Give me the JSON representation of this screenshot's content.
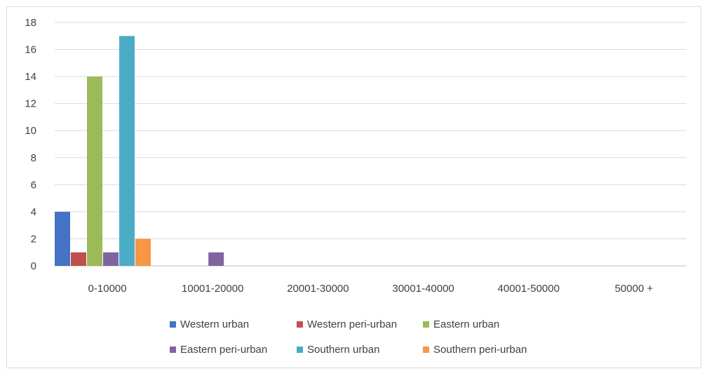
{
  "chart_data": {
    "type": "bar",
    "title": "",
    "xlabel": "",
    "ylabel": "",
    "ylim": [
      0,
      18
    ],
    "yticks": [
      0,
      2,
      4,
      6,
      8,
      10,
      12,
      14,
      16,
      18
    ],
    "grid": true,
    "legend_position": "bottom",
    "categories": [
      "0-10000",
      "10001-20000",
      "20001-30000",
      "30001-40000",
      "40001-50000",
      "50000 +"
    ],
    "series": [
      {
        "name": "Western urban",
        "color": "#4472c4",
        "values": [
          4,
          0,
          0,
          0,
          0,
          0
        ]
      },
      {
        "name": "Western peri-urban",
        "color": "#c0504d",
        "values": [
          1,
          0,
          0,
          0,
          0,
          0
        ]
      },
      {
        "name": "Eastern urban",
        "color": "#9bbb59",
        "values": [
          14,
          0,
          0,
          0,
          0,
          0
        ]
      },
      {
        "name": "Eastern peri-urban",
        "color": "#8064a2",
        "values": [
          1,
          1,
          0,
          0,
          0,
          0
        ]
      },
      {
        "name": "Southern urban",
        "color": "#4bacc6",
        "values": [
          17,
          0,
          0,
          0,
          0,
          0
        ]
      },
      {
        "name": "Southern peri-urban",
        "color": "#f79646",
        "values": [
          2,
          0,
          0,
          0,
          0,
          0
        ]
      }
    ]
  }
}
